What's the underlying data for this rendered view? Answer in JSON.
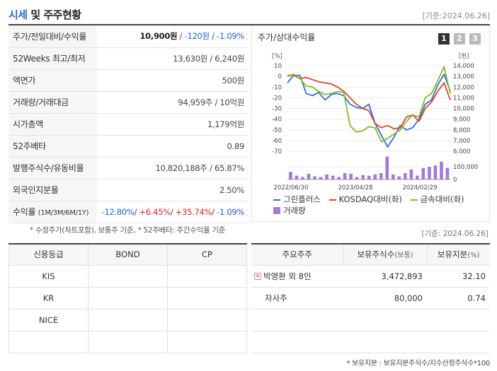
{
  "header": {
    "title_a": "시세",
    "title_b": " 및 주주현황",
    "date": "[기준:2024.06.26]"
  },
  "info": {
    "price_label": "주가/전일대비/수익률",
    "price": "10,900원",
    "change": "-120원",
    "change_pct": "-1.09%",
    "week52_label": "52Weeks 최고/최저",
    "week52": "13,630원 / 6,240원",
    "par_label": "액면가",
    "par": "500원",
    "volume_label": "거래량/거래대금",
    "volume": "94,959주 / 10억원",
    "mcap_label": "시가총액",
    "mcap": "1,179억원",
    "beta_label": "52주베타",
    "beta": "0.89",
    "shares_label": "발행주식수/유동비율",
    "shares": "10,820,188주 / 65.87%",
    "foreign_label": "외국인지분율",
    "foreign": "2.50%",
    "return_label": "수익률",
    "return_periods": "(1M/3M/6M/1Y)",
    "r1m": "-12.80%",
    "r3m": "+6.45%",
    "r6m": "+35.74%",
    "r1y": "-1.09%"
  },
  "notes": {
    "left": "* 수정주가(차트포함), 보통주 기준, * 52주베타: 주간수익률 기준",
    "right_date": "[기준: 2024.06.26]",
    "bottom": "* 보유지분 : 보유지분주식수/지수산정주식수*100"
  },
  "chart": {
    "title": "주가/상대수익률",
    "pages": [
      "1",
      "2",
      "3"
    ],
    "left_unit": "[%]",
    "right_unit": "[원]",
    "legend": {
      "s1": "그린플러스",
      "s2": "KOSDAQ대비(좌)",
      "s3": "금속대비(좌)",
      "s4": "거래량"
    },
    "colors": {
      "s1": "#2f6fd6",
      "s2": "#d9462a",
      "s3": "#86b82a",
      "s4": "#a57bd8"
    }
  },
  "chart_data": {
    "type": "line",
    "x_labels": [
      "2022/06/30",
      "2023/04/28",
      "2024/02/29"
    ],
    "y_left": {
      "unit": "%",
      "ticks": [
        10,
        0,
        -10,
        -20,
        -30,
        -40,
        -50,
        -60,
        -70
      ]
    },
    "y_right": {
      "unit": "원",
      "ticks": [
        14000,
        13000,
        12000,
        11000,
        10000,
        9000,
        8000,
        7000,
        6000
      ]
    },
    "volume_axis": {
      "ticks": [
        100000,
        0
      ]
    },
    "series": [
      {
        "name": "그린플러스",
        "axis": "left",
        "values": [
          -6,
          1,
          1,
          -16,
          -18,
          -15,
          -22,
          -17,
          -16,
          -18,
          -26,
          -29,
          -30,
          -26,
          -44,
          -55,
          -66,
          -57,
          -46,
          -50,
          -48,
          -40,
          -26,
          -22,
          -8,
          2,
          -14
        ]
      },
      {
        "name": "KOSDAQ대비(좌)",
        "axis": "left",
        "values": [
          1,
          1,
          -2,
          -1,
          -3,
          -5,
          -6,
          -7,
          -10,
          -14,
          -20,
          -26,
          -30,
          -32,
          -44,
          -48,
          -46,
          -49,
          -48,
          -38,
          -36,
          -42,
          -30,
          -24,
          -14,
          -6,
          -22
        ]
      },
      {
        "name": "금속대비(좌)",
        "axis": "left",
        "values": [
          0,
          2,
          -2,
          -9,
          -10,
          -14,
          -17,
          -16,
          -14,
          -15,
          -46,
          -52,
          -51,
          -47,
          -48,
          -61,
          -58,
          -54,
          -50,
          -42,
          -36,
          -38,
          -20,
          -16,
          -4,
          9,
          -16
        ]
      },
      {
        "name": "거래량",
        "axis": "volume",
        "values": [
          60000,
          30000,
          20000,
          45000,
          25000,
          20000,
          40000,
          30000,
          20000,
          50000,
          45000,
          20000,
          35000,
          30000,
          40000,
          50000,
          180000,
          40000,
          25000,
          50000,
          80000,
          30000,
          90000,
          100000,
          110000,
          140000,
          90000
        ]
      }
    ]
  },
  "credit": {
    "headers": [
      "신용등급",
      "BOND",
      "CP"
    ],
    "rows": [
      "KIS",
      "KR",
      "NICE",
      ""
    ]
  },
  "holders": {
    "h1": "주요주주",
    "h2": "보유주식수",
    "h2_unit": "(보통)",
    "h3": "보유지분",
    "h3_unit": "(%)",
    "rows": [
      {
        "name": "박영환 외 8인",
        "shares": "3,472,893",
        "pct": "32.10",
        "expand": "+"
      },
      {
        "name": "자사주",
        "shares": "80,000",
        "pct": "0.74",
        "expand": ""
      }
    ]
  }
}
